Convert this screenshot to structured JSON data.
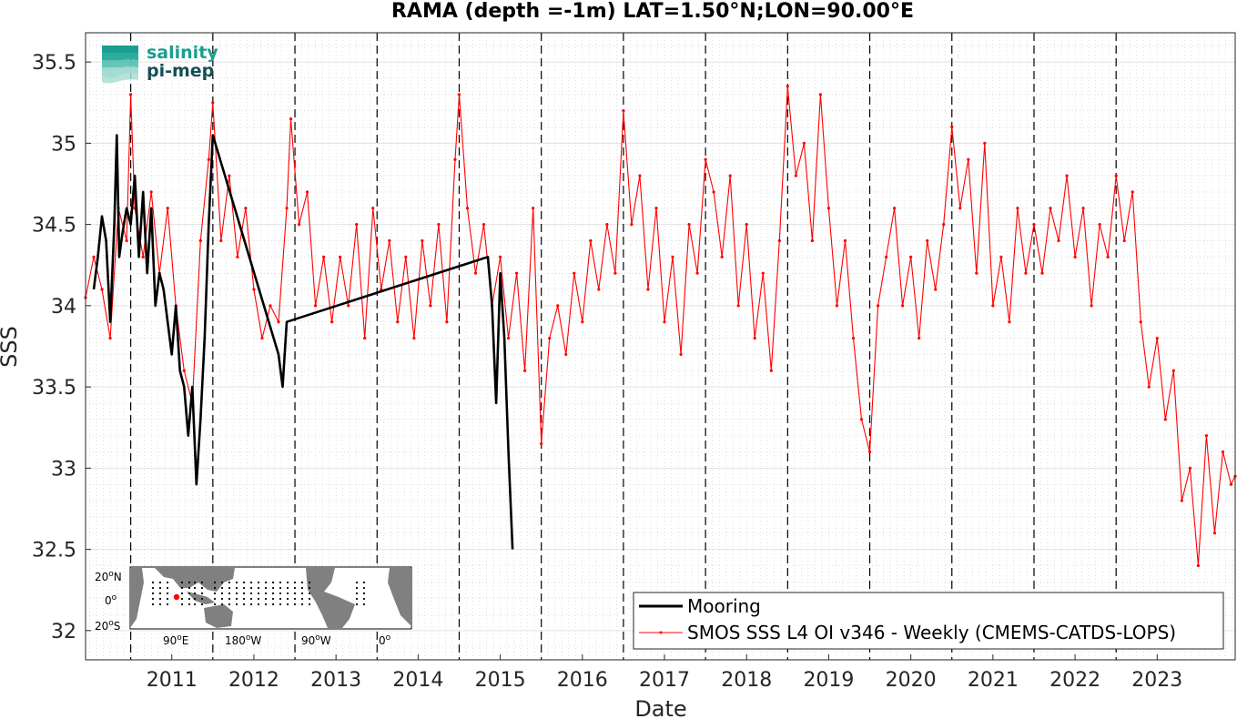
{
  "chart_data": {
    "type": "line",
    "title": "RAMA (depth =-1m) LAT=1.50°N;LON=90.00°E",
    "xlabel": "Date",
    "ylabel": "SSS",
    "xlim": [
      2010.45,
      2024.45
    ],
    "ylim": [
      31.82,
      35.68
    ],
    "grid": true,
    "legend_position": "bottom-right",
    "x_ticks": [
      "2011",
      "2012",
      "2013",
      "2014",
      "2015",
      "2016",
      "2017",
      "2018",
      "2019",
      "2020",
      "2021",
      "2022",
      "2023"
    ],
    "y_ticks": [
      "32",
      "32.5",
      "33",
      "33.5",
      "34",
      "34.5",
      "35",
      "35.5"
    ],
    "year_boundaries": [
      2011,
      2012,
      2013,
      2014,
      2015,
      2016,
      2017,
      2018,
      2019,
      2020,
      2021,
      2022,
      2023
    ],
    "series": [
      {
        "name": "Mooring",
        "color": "#000000",
        "style": "line",
        "x": [
          2010.55,
          2010.6,
          2010.65,
          2010.7,
          2010.75,
          2010.8,
          2010.83,
          2010.86,
          2010.9,
          2010.95,
          2011.0,
          2011.05,
          2011.1,
          2011.15,
          2011.2,
          2011.25,
          2011.3,
          2011.35,
          2011.4,
          2011.5,
          2011.55,
          2011.6,
          2011.65,
          2011.7,
          2011.75,
          2011.8,
          2011.85,
          2011.9,
          2011.95,
          2012.0,
          2012.8,
          2012.85,
          2012.9,
          2015.35,
          2015.4,
          2015.45,
          2015.5,
          2015.55,
          2015.6,
          2015.65
        ],
        "y": [
          34.1,
          34.3,
          34.55,
          34.4,
          33.9,
          34.5,
          35.05,
          34.3,
          34.45,
          34.6,
          34.5,
          34.8,
          34.3,
          34.7,
          34.2,
          34.6,
          34.0,
          34.2,
          34.1,
          33.7,
          34.0,
          33.6,
          33.5,
          33.2,
          33.5,
          32.9,
          33.3,
          33.8,
          34.5,
          35.05,
          33.7,
          33.5,
          33.9,
          34.3,
          34.0,
          33.4,
          34.2,
          33.8,
          33.1,
          32.5
        ]
      },
      {
        "name": "SMOS SSS L4 OI v346 - Weekly (CMEMS-CATDS-LOPS)",
        "color": "#ff0000",
        "style": "line-with-dots",
        "x": [
          2010.45,
          2010.55,
          2010.65,
          2010.75,
          2010.85,
          2010.95,
          2011.0,
          2011.05,
          2011.15,
          2011.25,
          2011.35,
          2011.45,
          2011.55,
          2011.65,
          2011.75,
          2011.85,
          2011.95,
          2012.0,
          2012.1,
          2012.2,
          2012.3,
          2012.4,
          2012.5,
          2012.6,
          2012.7,
          2012.8,
          2012.9,
          2012.95,
          2013.05,
          2013.15,
          2013.25,
          2013.35,
          2013.45,
          2013.55,
          2013.65,
          2013.75,
          2013.85,
          2013.95,
          2014.05,
          2014.15,
          2014.25,
          2014.35,
          2014.45,
          2014.55,
          2014.65,
          2014.75,
          2014.85,
          2014.95,
          2015.0,
          2015.1,
          2015.2,
          2015.3,
          2015.4,
          2015.5,
          2015.6,
          2015.7,
          2015.8,
          2015.9,
          2016.0,
          2016.1,
          2016.2,
          2016.3,
          2016.4,
          2016.5,
          2016.6,
          2016.7,
          2016.8,
          2016.9,
          2017.0,
          2017.1,
          2017.2,
          2017.3,
          2017.4,
          2017.5,
          2017.6,
          2017.7,
          2017.8,
          2017.9,
          2018.0,
          2018.1,
          2018.2,
          2018.3,
          2018.4,
          2018.5,
          2018.6,
          2018.7,
          2018.8,
          2018.9,
          2019.0,
          2019.1,
          2019.2,
          2019.3,
          2019.4,
          2019.5,
          2019.6,
          2019.7,
          2019.8,
          2019.9,
          2020.0,
          2020.1,
          2020.2,
          2020.3,
          2020.4,
          2020.5,
          2020.6,
          2020.7,
          2020.8,
          2020.9,
          2021.0,
          2021.1,
          2021.2,
          2021.3,
          2021.4,
          2021.5,
          2021.6,
          2021.7,
          2021.8,
          2021.9,
          2022.0,
          2022.1,
          2022.2,
          2022.3,
          2022.4,
          2022.5,
          2022.6,
          2022.7,
          2022.8,
          2022.9,
          2023.0,
          2023.1,
          2023.2,
          2023.3,
          2023.4,
          2023.5,
          2023.6,
          2023.7,
          2023.8,
          2023.9,
          2024.0,
          2024.1,
          2024.2,
          2024.3,
          2024.4,
          2024.45
        ],
        "y": [
          34.05,
          34.3,
          34.1,
          33.8,
          34.6,
          34.4,
          35.3,
          34.6,
          34.3,
          34.7,
          34.2,
          34.6,
          34.0,
          33.6,
          33.4,
          34.4,
          34.9,
          35.25,
          34.4,
          34.8,
          34.3,
          34.6,
          34.1,
          33.8,
          34.0,
          33.9,
          34.6,
          35.15,
          34.5,
          34.7,
          34.0,
          34.3,
          33.9,
          34.3,
          34.0,
          34.5,
          33.8,
          34.6,
          34.1,
          34.4,
          33.9,
          34.3,
          33.8,
          34.4,
          34.0,
          34.5,
          33.9,
          34.9,
          35.3,
          34.6,
          34.2,
          34.5,
          34.0,
          34.3,
          33.8,
          34.2,
          33.6,
          34.6,
          33.15,
          33.8,
          34.0,
          33.7,
          34.2,
          33.9,
          34.4,
          34.1,
          34.5,
          34.2,
          35.2,
          34.5,
          34.8,
          34.1,
          34.6,
          33.9,
          34.3,
          33.7,
          34.5,
          34.2,
          34.9,
          34.7,
          34.3,
          34.8,
          34.0,
          34.5,
          33.8,
          34.2,
          33.6,
          34.4,
          35.35,
          34.8,
          35.0,
          34.4,
          35.3,
          34.6,
          34.0,
          34.4,
          33.8,
          33.3,
          33.1,
          34.0,
          34.3,
          34.6,
          34.0,
          34.3,
          33.8,
          34.4,
          34.1,
          34.5,
          35.1,
          34.6,
          34.9,
          34.2,
          35.0,
          34.0,
          34.3,
          33.9,
          34.6,
          34.2,
          34.5,
          34.2,
          34.6,
          34.4,
          34.8,
          34.3,
          34.6,
          34.0,
          34.5,
          34.3,
          34.8,
          34.4,
          34.7,
          33.9,
          33.5,
          33.8,
          33.3,
          33.6,
          32.8,
          33.0,
          32.4,
          33.2,
          32.6,
          33.1,
          32.9,
          32.95
        ]
      }
    ]
  },
  "logo": {
    "line1": "salinity",
    "line2": "pi-mep",
    "color1": "#1a9e8f",
    "color2": "#164f55"
  },
  "inset_map": {
    "lat_labels": [
      "20",
      "0",
      "20"
    ],
    "lat_suffixes": [
      "N",
      "",
      "S"
    ],
    "lon_labels": [
      "90",
      "180",
      "90",
      "0"
    ],
    "lon_suffixes": [
      "E",
      "W",
      "W",
      ""
    ],
    "degree_mark": "o",
    "ocean_color": "#ffffff",
    "land_color": "#808080",
    "marker_color": "#ff0000"
  }
}
